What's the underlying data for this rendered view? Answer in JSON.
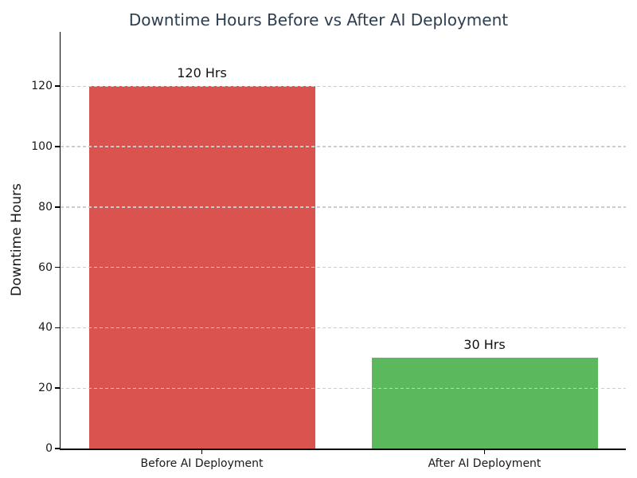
{
  "chart_data": {
    "type": "bar",
    "title": "Downtime Hours Before vs After AI Deployment",
    "title_color": "#2c3e50",
    "xlabel": "",
    "ylabel": "Downtime Hours",
    "categories": [
      "Before AI Deployment",
      "After AI Deployment"
    ],
    "values": [
      120,
      30
    ],
    "bar_colors": [
      "#d9534f",
      "#5cb85c"
    ],
    "bar_value_labels": [
      "120 Hrs",
      "30 Hrs"
    ],
    "bar_width_fraction": 0.8,
    "yticks": [
      0,
      20,
      40,
      60,
      80,
      100,
      120
    ],
    "ylim": [
      0,
      138
    ],
    "grid": {
      "axis": "y",
      "style": "dashed",
      "color": "#cccccc",
      "drawn_above_bars": true
    },
    "legend": null,
    "background_color": "#ffffff",
    "axis_color": "#000000",
    "tick_text_color": "#1a1a1a"
  }
}
